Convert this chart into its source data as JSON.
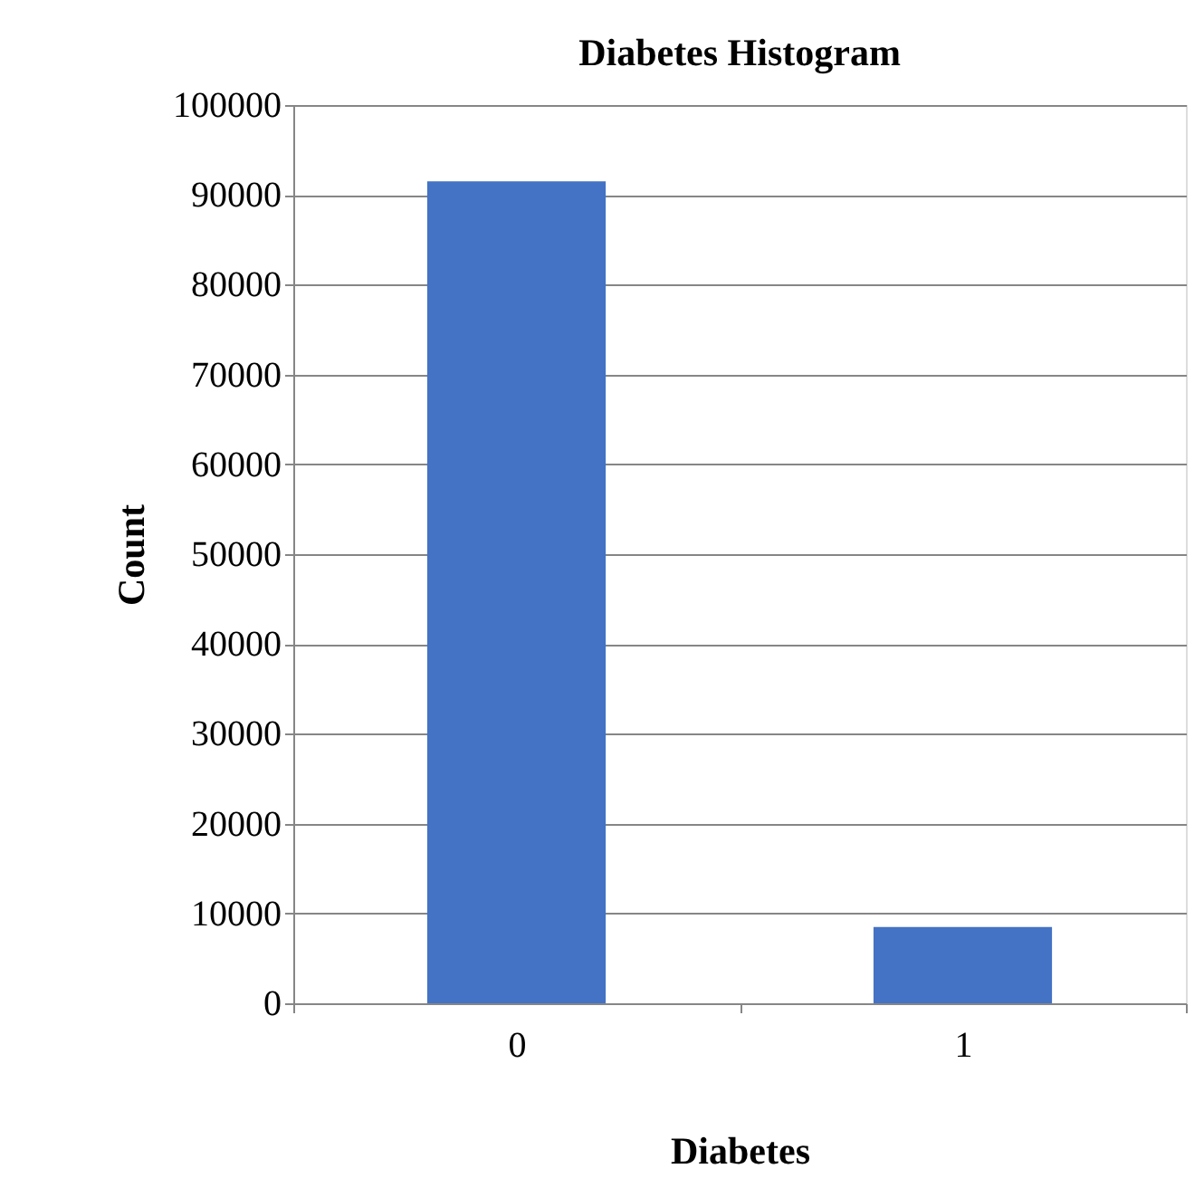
{
  "chart_data": {
    "type": "bar",
    "title": "Diabetes Histogram",
    "xlabel": "Diabetes",
    "ylabel": "Count",
    "categories": [
      "0",
      "1"
    ],
    "values": [
      91500,
      8500
    ],
    "color": "#4472c4",
    "ylim": [
      0,
      100000
    ],
    "yticks": [
      0,
      10000,
      20000,
      30000,
      40000,
      50000,
      60000,
      70000,
      80000,
      90000,
      100000
    ],
    "grid": "y"
  }
}
